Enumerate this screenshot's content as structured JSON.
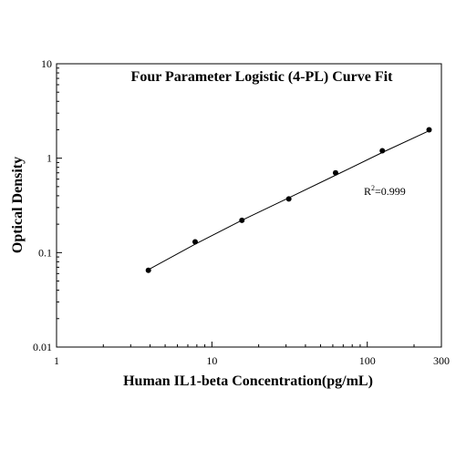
{
  "chart_data": {
    "type": "scatter",
    "title": "Four Parameter Logistic (4-PL) Curve Fit",
    "xlabel": "Human IL1-beta Concentration(pg/mL)",
    "ylabel": "Optical Density",
    "x_scale": "log",
    "y_scale": "log",
    "xlim": [
      1,
      300
    ],
    "ylim": [
      0.01,
      10
    ],
    "x_ticks": [
      1,
      10,
      100,
      300
    ],
    "x_tick_labels": [
      "1",
      "10",
      "100",
      "300"
    ],
    "y_ticks": [
      0.01,
      0.1,
      1,
      10
    ],
    "y_tick_labels": [
      "0.01",
      "0.1",
      "1",
      "10"
    ],
    "grid": false,
    "series": [
      {
        "x": [
          3.9,
          7.8,
          15.6,
          31.25,
          62.5,
          125,
          250
        ],
        "y": [
          0.065,
          0.13,
          0.22,
          0.37,
          0.7,
          1.2,
          2.0
        ]
      }
    ],
    "fit_curve": {
      "x": [
        3.9,
        7.8,
        15.6,
        31.25,
        62.5,
        125,
        250
      ],
      "y": [
        0.066,
        0.123,
        0.22,
        0.38,
        0.66,
        1.15,
        1.95
      ]
    },
    "annotation": {
      "r_label": "R",
      "r_superscript": "2",
      "r_value": "=0.999"
    }
  }
}
